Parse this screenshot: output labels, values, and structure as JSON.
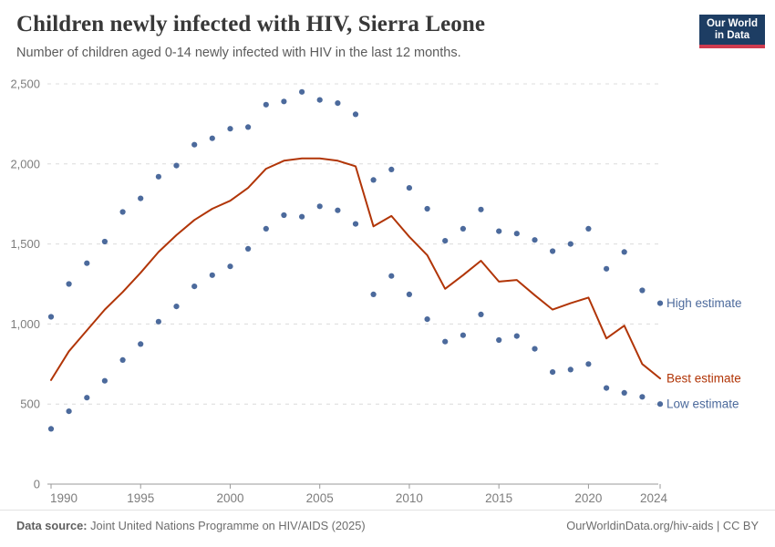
{
  "header": {
    "title": "Children newly infected with HIV, Sierra Leone",
    "subtitle": "Number of children aged 0-14 newly infected with HIV in the last 12 months.",
    "logo": {
      "line1": "Our World",
      "line2": "in Data"
    }
  },
  "colors": {
    "best": "#B13507",
    "estimate_dots": "#4C6A9C",
    "grid": "#dcdcdc",
    "axis": "#9a9a9a",
    "tick_text": "#7d7d7d"
  },
  "chart_data": {
    "type": "line",
    "title": "Children newly infected with HIV, Sierra Leone",
    "xlabel": "",
    "ylabel": "",
    "ylim": [
      0,
      2500
    ],
    "grid": "horizontal-dashed",
    "legend_position": "right-of-last-point",
    "x": [
      1990,
      1991,
      1992,
      1993,
      1994,
      1995,
      1996,
      1997,
      1998,
      1999,
      2000,
      2001,
      2002,
      2003,
      2004,
      2005,
      2006,
      2007,
      2008,
      2009,
      2010,
      2011,
      2012,
      2013,
      2014,
      2015,
      2016,
      2017,
      2018,
      2019,
      2020,
      2021,
      2022,
      2023,
      2024
    ],
    "series": [
      {
        "name": "High estimate",
        "style": "scatter",
        "color": "#4C6A9C",
        "values": [
          1045,
          1250,
          1380,
          1515,
          1700,
          1785,
          1920,
          1990,
          2120,
          2160,
          2220,
          2230,
          2370,
          2390,
          2450,
          2400,
          2380,
          2310,
          1900,
          1965,
          1850,
          1720,
          1520,
          1595,
          1715,
          1580,
          1565,
          1525,
          1455,
          1500,
          1595,
          1345,
          1450,
          1210,
          1130
        ]
      },
      {
        "name": "Best estimate",
        "style": "line",
        "color": "#B13507",
        "values": [
          650,
          830,
          960,
          1090,
          1200,
          1320,
          1450,
          1555,
          1650,
          1720,
          1770,
          1850,
          1970,
          2020,
          2035,
          2035,
          2020,
          1985,
          1610,
          1675,
          1545,
          1430,
          1220,
          1305,
          1395,
          1265,
          1275,
          1180,
          1090,
          1130,
          1165,
          910,
          990,
          750,
          660
        ]
      },
      {
        "name": "Low estimate",
        "style": "scatter",
        "color": "#4C6A9C",
        "values": [
          345,
          455,
          540,
          645,
          775,
          875,
          1015,
          1110,
          1235,
          1305,
          1360,
          1470,
          1595,
          1680,
          1670,
          1735,
          1710,
          1625,
          1185,
          1300,
          1185,
          1030,
          890,
          930,
          1060,
          900,
          925,
          845,
          700,
          715,
          750,
          600,
          570,
          545,
          500
        ]
      }
    ],
    "y_ticks": [
      {
        "value": 0,
        "label": "0"
      },
      {
        "value": 500,
        "label": "500"
      },
      {
        "value": 1000,
        "label": "1,000"
      },
      {
        "value": 1500,
        "label": "1,500"
      },
      {
        "value": 2000,
        "label": "2,000"
      },
      {
        "value": 2500,
        "label": "2,500"
      }
    ],
    "x_ticks": [
      {
        "value": 1990,
        "label": "1990"
      },
      {
        "value": 1995,
        "label": "1995"
      },
      {
        "value": 2000,
        "label": "2000"
      },
      {
        "value": 2005,
        "label": "2005"
      },
      {
        "value": 2010,
        "label": "2010"
      },
      {
        "value": 2015,
        "label": "2015"
      },
      {
        "value": 2020,
        "label": "2020"
      },
      {
        "value": 2024,
        "label": "2024"
      }
    ]
  },
  "footer": {
    "source_label": "Data source:",
    "source_value": " Joint United Nations Programme on HIV/AIDS (2025)",
    "credit": "OurWorldinData.org/hiv-aids | CC BY"
  }
}
